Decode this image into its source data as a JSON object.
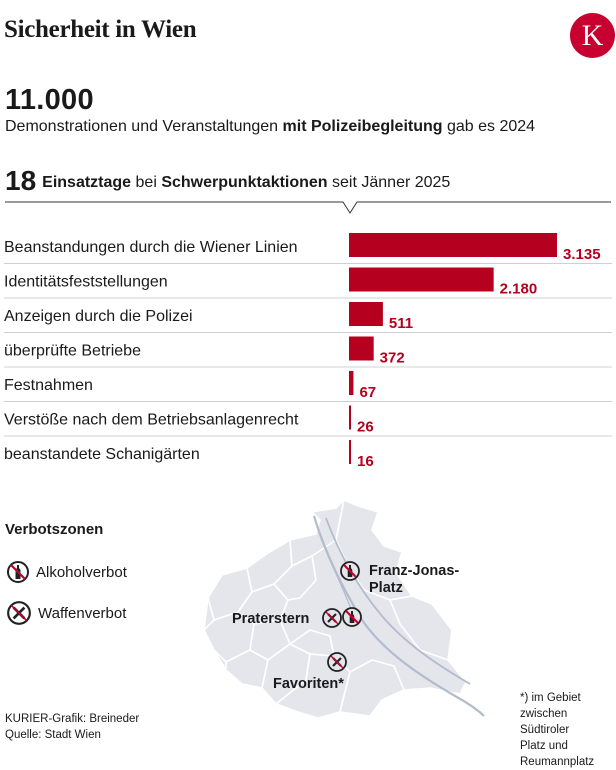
{
  "title": "Sicherheit in Wien",
  "logo": {
    "letter": "K",
    "color": "#c8002f"
  },
  "highlight": {
    "number": "11.000",
    "text_pre": "Demonstrationen und Veranstaltungen ",
    "text_bold": "mit Polizeibegleitung",
    "text_post": " gab es 2024"
  },
  "subheadline": {
    "number": "18",
    "bold1": "Einsatztage",
    "mid": " bei ",
    "bold2": "Schwerpunktaktionen",
    "post": " seit Jänner 2025"
  },
  "chart_data": {
    "type": "bar",
    "orientation": "horizontal",
    "categories": [
      "Beanstandungen durch die Wiener Linien",
      "Identitätsfeststellungen",
      "Anzeigen durch die Polizei",
      "überprüfte Betriebe",
      "Festnahmen",
      "Verstöße nach dem Betriebsanlagenrecht",
      "beanstandete Schanigärten"
    ],
    "values": [
      3135,
      2180,
      511,
      372,
      67,
      26,
      16
    ],
    "value_labels": [
      "3.135",
      "2.180",
      "511",
      "372",
      "67",
      "26",
      "16"
    ],
    "bar_color": "#b5001f"
  },
  "zones": {
    "title": "Verbotszonen",
    "alcohol_label": "Alkoholverbot",
    "weapon_label": "Waffenverbot"
  },
  "map": {
    "place_1a": "Franz-Jonas-",
    "place_1b": "Platz",
    "place_2": "Praterstern",
    "place_3": "Favoriten*"
  },
  "footnote": [
    "*)  im Gebiet",
    "zwischen",
    "Südtiroler",
    "Platz und",
    "Reumannplatz"
  ],
  "credit": [
    "KURIER-Grafik: Breineder",
    "Quelle: Stadt Wien"
  ]
}
